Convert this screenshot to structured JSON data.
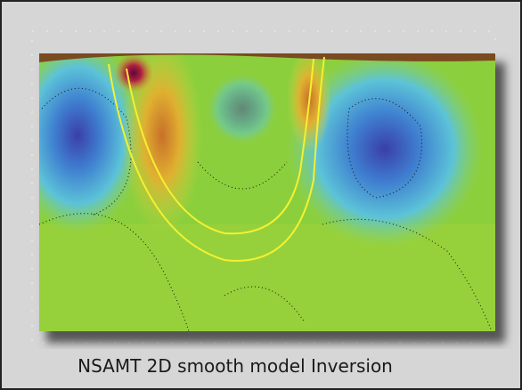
{
  "figure": {
    "caption": "NSAMT 2D smooth model Inversion"
  }
}
